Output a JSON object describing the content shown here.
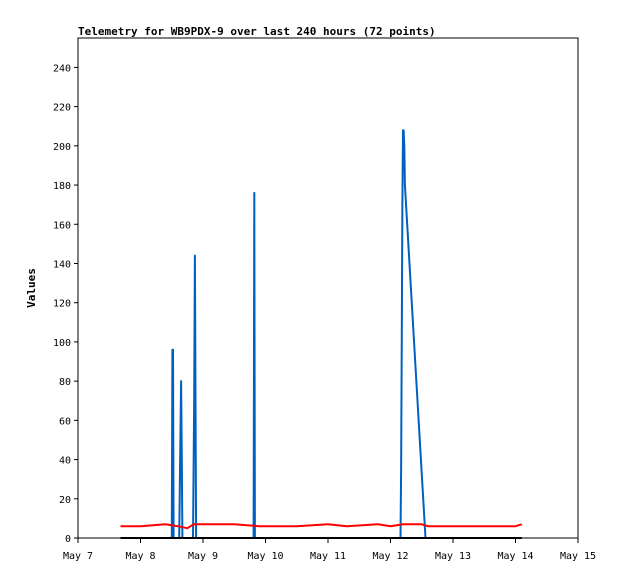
{
  "chart_data": {
    "type": "line",
    "title": "Telemetry for WB9PDX-9 over last 240 hours (72 points)",
    "xlabel": "",
    "ylabel": "Values",
    "x_ticks": [
      "May 7",
      "May 8",
      "May 9",
      "May 10",
      "May 11",
      "May 12",
      "May 13",
      "May 14",
      "May 15"
    ],
    "y_ticks": [
      0,
      20,
      40,
      60,
      80,
      100,
      120,
      140,
      160,
      180,
      200,
      220,
      240
    ],
    "xlim": [
      7.0,
      15.0
    ],
    "ylim": [
      0,
      255
    ],
    "grid": false,
    "x_unit": "day of May",
    "series": [
      {
        "color": "#0060c0",
        "x": [
          7.68,
          8.5,
          8.51,
          8.52,
          8.53,
          8.62,
          8.65,
          8.66,
          8.67,
          8.68,
          8.69,
          8.84,
          8.86,
          8.87,
          8.88,
          8.89,
          8.9,
          9.81,
          9.82,
          9.83,
          12.16,
          12.17,
          12.18,
          12.19,
          12.2,
          12.21,
          12.22,
          12.23,
          12.56,
          14.1
        ],
        "y": [
          0,
          0,
          96,
          96,
          0,
          0,
          80,
          40,
          0,
          0,
          0,
          0,
          72,
          144,
          72,
          0,
          0,
          0,
          176,
          0,
          0,
          34,
          104,
          172,
          208,
          208,
          200,
          180,
          0,
          0
        ]
      },
      {
        "color": "#ff0000",
        "x": [
          7.68,
          8.0,
          8.4,
          8.6,
          8.75,
          8.85,
          9.0,
          9.5,
          9.9,
          10.5,
          11.0,
          11.3,
          11.8,
          12.0,
          12.2,
          12.5,
          12.6,
          13.5,
          14.0,
          14.1
        ],
        "y": [
          6,
          6,
          7,
          6,
          5,
          7,
          7,
          7,
          6,
          6,
          7,
          6,
          7,
          6,
          7,
          7,
          6,
          6,
          6,
          7
        ]
      },
      {
        "color": "#000000",
        "x": [
          7.68,
          14.1
        ],
        "y": [
          0,
          0
        ]
      }
    ]
  }
}
